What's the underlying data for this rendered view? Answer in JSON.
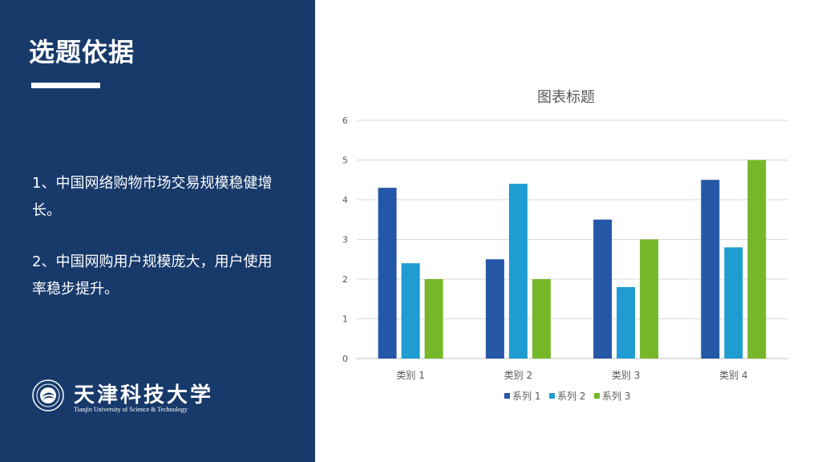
{
  "slide": {
    "title": "选题依据",
    "points": [
      "1、中国网络购物市场交易规模稳健增长。",
      "2、中国网购用户规模庞大，用户使用率稳步提升。"
    ]
  },
  "logo": {
    "name_cn": "天津科技大学",
    "name_en": "Tianjin University of Science & Technology"
  },
  "colors": {
    "panel": "#173a6b",
    "series": [
      "#2557a7",
      "#1f9cd1",
      "#76b82a"
    ]
  },
  "chart_data": {
    "type": "bar",
    "title": "图表标题",
    "categories": [
      "类别 1",
      "类别 2",
      "类别 3",
      "类别 4"
    ],
    "series": [
      {
        "name": "系列 1",
        "values": [
          4.3,
          2.5,
          3.5,
          4.5
        ]
      },
      {
        "name": "系列 2",
        "values": [
          2.4,
          4.4,
          1.8,
          2.8
        ]
      },
      {
        "name": "系列 3",
        "values": [
          2,
          2,
          3,
          5
        ]
      }
    ],
    "ylim": [
      0,
      6
    ],
    "yticks": [
      "0",
      "1",
      "2",
      "3",
      "4",
      "5",
      "6"
    ],
    "grid": true,
    "legend": "bottom"
  }
}
